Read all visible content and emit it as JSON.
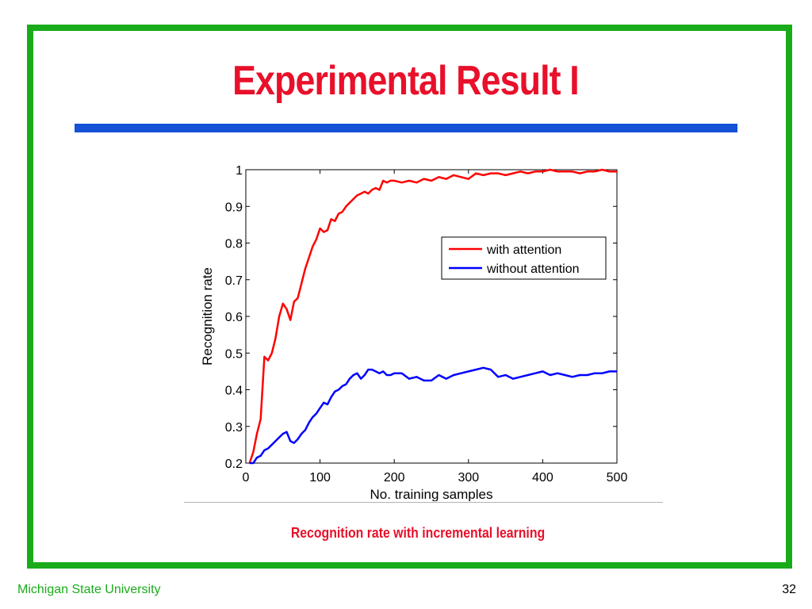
{
  "slide": {
    "title": "Experimental Result I",
    "caption": "Recognition rate with incremental learning",
    "footer_left": "Michigan State University",
    "page_number": "32",
    "colors": {
      "frame": "#1aab1a",
      "title": "#e8102a",
      "rule": "#1452d6"
    }
  },
  "chart_data": {
    "type": "line",
    "title": "",
    "xlabel": "No. training samples",
    "ylabel": "Recognition rate",
    "xlim": [
      0,
      500
    ],
    "ylim": [
      0.2,
      1.0
    ],
    "xticks": [
      0,
      100,
      200,
      300,
      400,
      500
    ],
    "yticks": [
      0.2,
      0.3,
      0.4,
      0.5,
      0.6,
      0.7,
      0.8,
      0.9,
      1.0
    ],
    "xtick_labels": [
      "0",
      "100",
      "200",
      "300",
      "400",
      "500"
    ],
    "ytick_labels": [
      "0.2",
      "0.3",
      "0.4",
      "0.5",
      "0.6",
      "0.7",
      "0.8",
      "0.9",
      "1"
    ],
    "grid": false,
    "legend_position": "upper-right",
    "series": [
      {
        "name": "with attention",
        "color": "#ff0000",
        "x": [
          5,
          10,
          15,
          20,
          25,
          30,
          35,
          40,
          45,
          50,
          55,
          60,
          65,
          70,
          75,
          80,
          85,
          90,
          95,
          100,
          105,
          110,
          115,
          120,
          125,
          130,
          135,
          140,
          145,
          150,
          155,
          160,
          165,
          170,
          175,
          180,
          185,
          190,
          195,
          200,
          210,
          220,
          230,
          240,
          250,
          260,
          270,
          280,
          290,
          300,
          310,
          320,
          330,
          340,
          350,
          360,
          370,
          380,
          390,
          400,
          410,
          420,
          430,
          440,
          450,
          460,
          470,
          480,
          490,
          500
        ],
        "values": [
          0.2,
          0.23,
          0.28,
          0.32,
          0.49,
          0.48,
          0.5,
          0.54,
          0.6,
          0.635,
          0.62,
          0.59,
          0.64,
          0.65,
          0.69,
          0.73,
          0.76,
          0.79,
          0.81,
          0.84,
          0.83,
          0.835,
          0.865,
          0.86,
          0.88,
          0.885,
          0.9,
          0.91,
          0.92,
          0.93,
          0.935,
          0.94,
          0.935,
          0.945,
          0.95,
          0.945,
          0.97,
          0.965,
          0.97,
          0.97,
          0.965,
          0.97,
          0.965,
          0.975,
          0.97,
          0.98,
          0.975,
          0.985,
          0.98,
          0.975,
          0.99,
          0.985,
          0.99,
          0.99,
          0.985,
          0.99,
          0.995,
          0.99,
          0.995,
          0.995,
          1.0,
          0.995,
          0.995,
          0.995,
          0.99,
          0.995,
          0.995,
          1.0,
          0.995,
          0.995
        ]
      },
      {
        "name": "without attention",
        "color": "#0000ff",
        "x": [
          5,
          10,
          15,
          20,
          25,
          30,
          35,
          40,
          45,
          50,
          55,
          60,
          65,
          70,
          75,
          80,
          85,
          90,
          95,
          100,
          105,
          110,
          115,
          120,
          125,
          130,
          135,
          140,
          145,
          150,
          155,
          160,
          165,
          170,
          175,
          180,
          185,
          190,
          195,
          200,
          210,
          220,
          230,
          240,
          250,
          260,
          270,
          280,
          290,
          300,
          310,
          320,
          330,
          340,
          350,
          360,
          370,
          380,
          390,
          400,
          410,
          420,
          430,
          440,
          450,
          460,
          470,
          480,
          490,
          500
        ],
        "values": [
          0.2,
          0.2,
          0.215,
          0.22,
          0.235,
          0.24,
          0.25,
          0.26,
          0.27,
          0.28,
          0.285,
          0.26,
          0.255,
          0.265,
          0.28,
          0.29,
          0.31,
          0.325,
          0.335,
          0.35,
          0.365,
          0.36,
          0.38,
          0.395,
          0.4,
          0.41,
          0.415,
          0.43,
          0.44,
          0.445,
          0.43,
          0.44,
          0.455,
          0.455,
          0.45,
          0.445,
          0.45,
          0.44,
          0.44,
          0.445,
          0.445,
          0.43,
          0.435,
          0.425,
          0.425,
          0.44,
          0.43,
          0.44,
          0.445,
          0.45,
          0.455,
          0.46,
          0.455,
          0.435,
          0.44,
          0.43,
          0.435,
          0.44,
          0.445,
          0.45,
          0.44,
          0.445,
          0.44,
          0.435,
          0.44,
          0.44,
          0.445,
          0.445,
          0.45,
          0.45
        ]
      }
    ]
  }
}
